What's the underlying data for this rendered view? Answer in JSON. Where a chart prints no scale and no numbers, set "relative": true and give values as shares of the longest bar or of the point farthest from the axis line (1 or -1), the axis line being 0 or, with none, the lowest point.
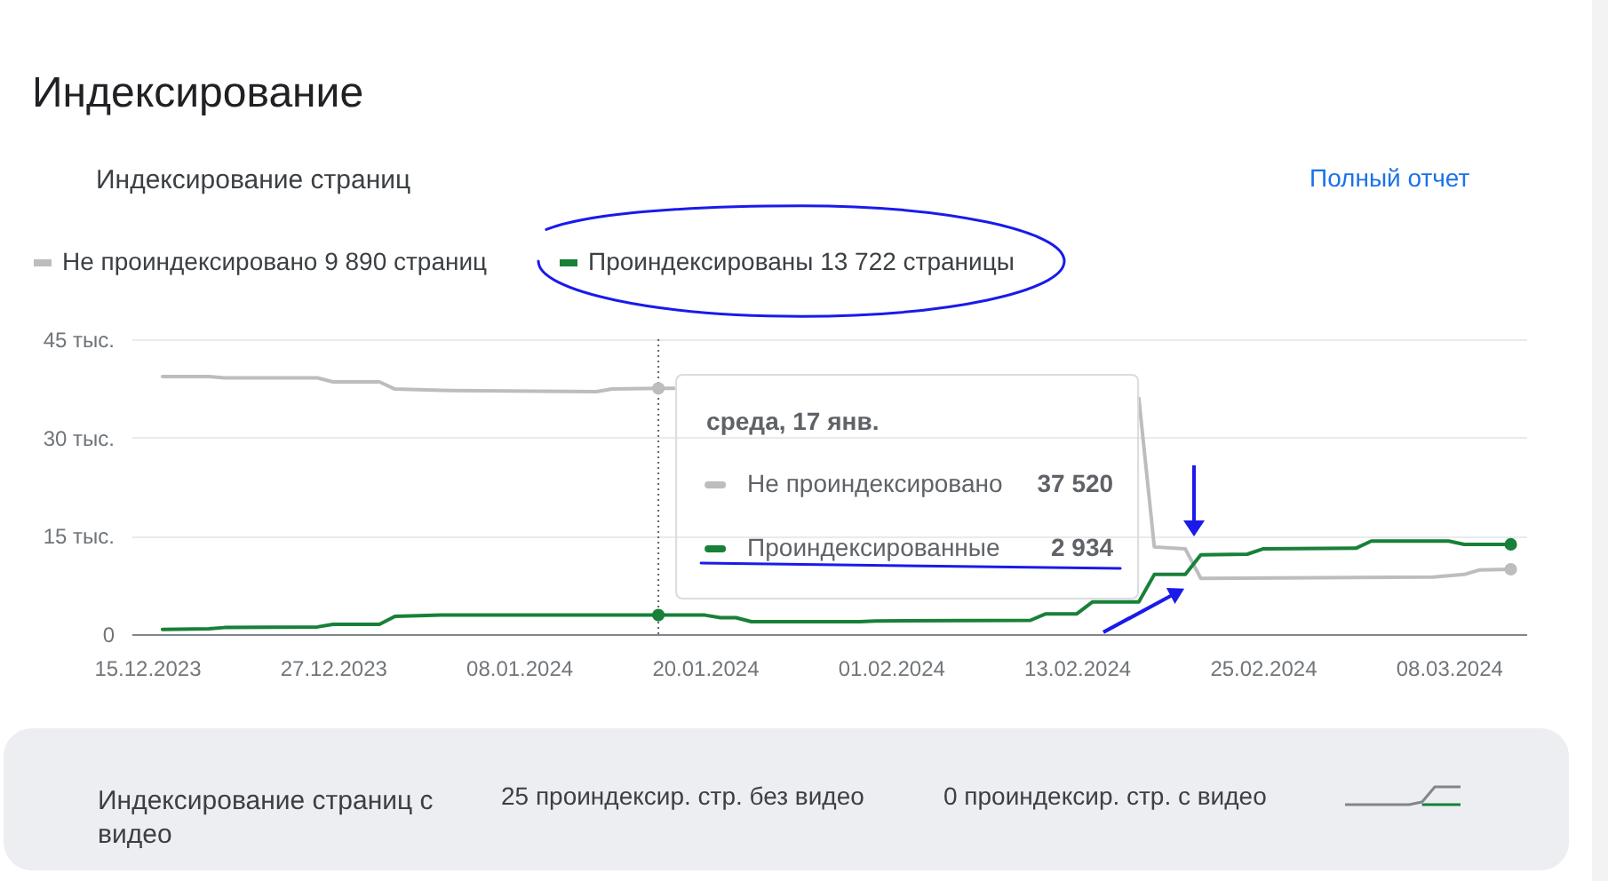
{
  "chart_data": [
    {
      "type": "line",
      "title": "Индексирование",
      "subtitle": "Индексирование страниц",
      "annotations": [
        "Полный отчет",
        "среда, 17 янв.",
        "Не проиндексировано",
        "37 520",
        "Проиндексированные",
        "2 934"
      ],
      "xlim": [
        "2023-12-14",
        "2024-03-13"
      ],
      "xticks": [
        {
          "value": "2023-12-15",
          "label": "15.12.2023"
        },
        {
          "value": "2023-12-27",
          "label": "27.12.2023"
        },
        {
          "value": "2024-01-08",
          "label": "08.01.2024"
        },
        {
          "value": "2024-01-20",
          "label": "20.01.2024"
        },
        {
          "value": "2024-02-01",
          "label": "01.02.2024"
        },
        {
          "value": "2024-02-13",
          "label": "13.02.2024"
        },
        {
          "value": "2024-02-25",
          "label": "25.02.2024"
        },
        {
          "value": "2024-03-08",
          "label": "08.03.2024"
        }
      ],
      "ylim": [
        0,
        45
      ],
      "yticks": [
        0,
        {
          "value": 15,
          "label": "15 тыс."
        },
        {
          "value": 30,
          "label": "30 тыс."
        },
        {
          "value": 45,
          "label": "45 тыс."
        }
      ],
      "grid": "y",
      "legend": "top left",
      "ref_lines": [
        {
          "axis": "x",
          "value": "2024-01-17",
          "color": "#5f6368",
          "line_style": "dotted"
        }
      ],
      "series": [
        {
          "name": "Не проиндексировано 9 890 страниц",
          "color": "#bdbdbd",
          "x": [
            "2023-12-16",
            "2023-12-19",
            "2023-12-20",
            "2023-12-26",
            "2023-12-27",
            "2023-12-30",
            "2023-12-31",
            "2024-01-03",
            "2024-01-13",
            "2024-01-14",
            "2024-01-17",
            "2024-01-18",
            "2024-01-19",
            "2024-02-17",
            "2024-02-18",
            "2024-02-20",
            "2024-02-21",
            "2024-03-07",
            "2024-03-09",
            "2024-03-10",
            "2024-03-12"
          ],
          "values": [
            39.3,
            39.3,
            39.1,
            39.1,
            38.5,
            38.5,
            37.4,
            37.2,
            37.0,
            37.4,
            37.5,
            37.5,
            null,
            36.0,
            13.3,
            13.0,
            8.5,
            8.7,
            9.1,
            9.8,
            9.9
          ]
        },
        {
          "name": "Проиндексированы 13 722 страницы",
          "color": "#188038",
          "x": [
            "2023-12-16",
            "2023-12-19",
            "2023-12-20",
            "2023-12-26",
            "2023-12-27",
            "2023-12-30",
            "2023-12-31",
            "2024-01-03",
            "2024-01-17",
            "2024-01-20",
            "2024-01-21",
            "2024-01-22",
            "2024-01-23",
            "2024-01-30",
            "2024-01-31",
            "2024-02-10",
            "2024-02-11",
            "2024-02-13",
            "2024-02-14",
            "2024-02-17",
            "2024-02-18",
            "2024-02-20",
            "2024-02-21",
            "2024-02-24",
            "2024-02-25",
            "2024-03-02",
            "2024-03-03",
            "2024-03-08",
            "2024-03-09",
            "2024-03-12"
          ],
          "values": [
            0.7,
            0.8,
            1.0,
            1.1,
            1.5,
            1.5,
            2.7,
            2.9,
            2.9,
            2.9,
            2.5,
            2.5,
            1.9,
            1.9,
            2.0,
            2.1,
            3.1,
            3.1,
            4.9,
            4.9,
            9.1,
            9.1,
            12.1,
            12.2,
            13.0,
            13.1,
            14.2,
            14.2,
            13.7,
            13.7
          ]
        },
        {
          "type": "scatter",
          "marker": "circle",
          "color": "#bdbdbd",
          "x": [
            "2024-01-17",
            "2024-03-12"
          ],
          "values": [
            37.5,
            9.9
          ]
        },
        {
          "type": "scatter",
          "marker": "circle",
          "color": "#188038",
          "x": [
            "2024-01-17",
            "2024-03-12"
          ],
          "values": [
            2.9,
            13.7
          ]
        }
      ]
    },
    {
      "type": "line",
      "relative": true,
      "annotations": [
        "Индексирование страниц с видео",
        "25 проиндексир. стр. без видео",
        "0 проиндексир. стр. с видео"
      ],
      "categories": [
        null,
        null,
        null,
        null,
        null,
        null,
        null,
        null,
        null,
        null
      ],
      "series": [
        {
          "color": "#80868b",
          "values": [
            0,
            0,
            0,
            0,
            0,
            0,
            0.15,
            1,
            1,
            1
          ]
        },
        {
          "color": "#188038",
          "values": [
            null,
            null,
            null,
            null,
            null,
            null,
            0,
            0,
            0,
            0
          ]
        }
      ]
    }
  ]
}
